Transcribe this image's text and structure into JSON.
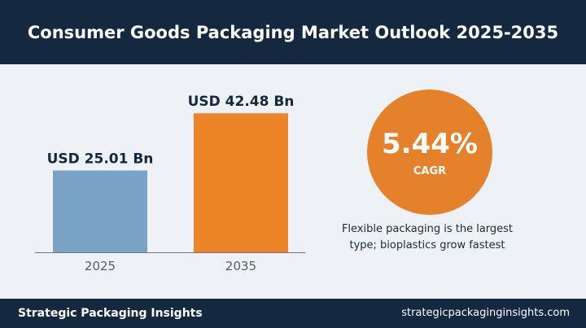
{
  "header": {
    "title": "Consumer Goods Packaging Market Outlook 2025-2035"
  },
  "chart_data": {
    "type": "bar",
    "categories": [
      "2025",
      "2035"
    ],
    "values": [
      25.01,
      42.48
    ],
    "data_labels": [
      "USD 25.01 Bn",
      "USD 42.48 Bn"
    ],
    "colors": [
      "#7aa2c4",
      "#ee8428"
    ],
    "ylim": [
      0,
      50
    ],
    "grid": false
  },
  "cagr": {
    "value": "5.44%",
    "label": "CAGR",
    "color": "#e5812a"
  },
  "note": {
    "line1": "Flexible packaging is the largest",
    "line2": "type; bioplastics grow fastest"
  },
  "footer": {
    "brand": "Strategic Packaging Insights",
    "url": "strategicpackaginginsights.com"
  }
}
